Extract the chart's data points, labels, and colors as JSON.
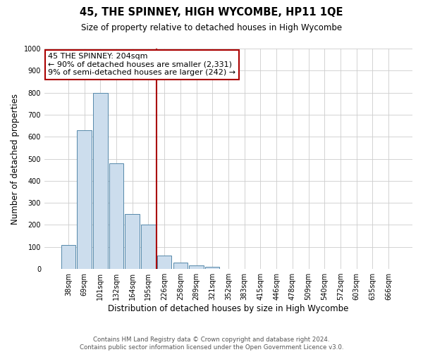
{
  "title": "45, THE SPINNEY, HIGH WYCOMBE, HP11 1QE",
  "subtitle": "Size of property relative to detached houses in High Wycombe",
  "xlabel": "Distribution of detached houses by size in High Wycombe",
  "ylabel": "Number of detached properties",
  "footer_line1": "Contains HM Land Registry data © Crown copyright and database right 2024.",
  "footer_line2": "Contains public sector information licensed under the Open Government Licence v3.0.",
  "bar_labels": [
    "38sqm",
    "69sqm",
    "101sqm",
    "132sqm",
    "164sqm",
    "195sqm",
    "226sqm",
    "258sqm",
    "289sqm",
    "321sqm",
    "352sqm",
    "383sqm",
    "415sqm",
    "446sqm",
    "478sqm",
    "509sqm",
    "540sqm",
    "572sqm",
    "603sqm",
    "635sqm",
    "666sqm"
  ],
  "bar_values": [
    110,
    630,
    800,
    480,
    250,
    200,
    60,
    28,
    15,
    10,
    0,
    0,
    0,
    0,
    0,
    0,
    0,
    0,
    0,
    0,
    0
  ],
  "bar_color": "#ccdded",
  "bar_edge_color": "#5588aa",
  "vline_x_index": 5.5,
  "vline_color": "#aa0000",
  "annotation_title": "45 THE SPINNEY: 204sqm",
  "annotation_line1": "← 90% of detached houses are smaller (2,331)",
  "annotation_line2": "9% of semi-detached houses are larger (242) →",
  "annotation_box_color": "#ffffff",
  "annotation_box_edge_color": "#aa0000",
  "ylim": [
    0,
    1000
  ],
  "yticks": [
    0,
    100,
    200,
    300,
    400,
    500,
    600,
    700,
    800,
    900,
    1000
  ],
  "background_color": "#ffffff",
  "grid_color": "#cccccc"
}
